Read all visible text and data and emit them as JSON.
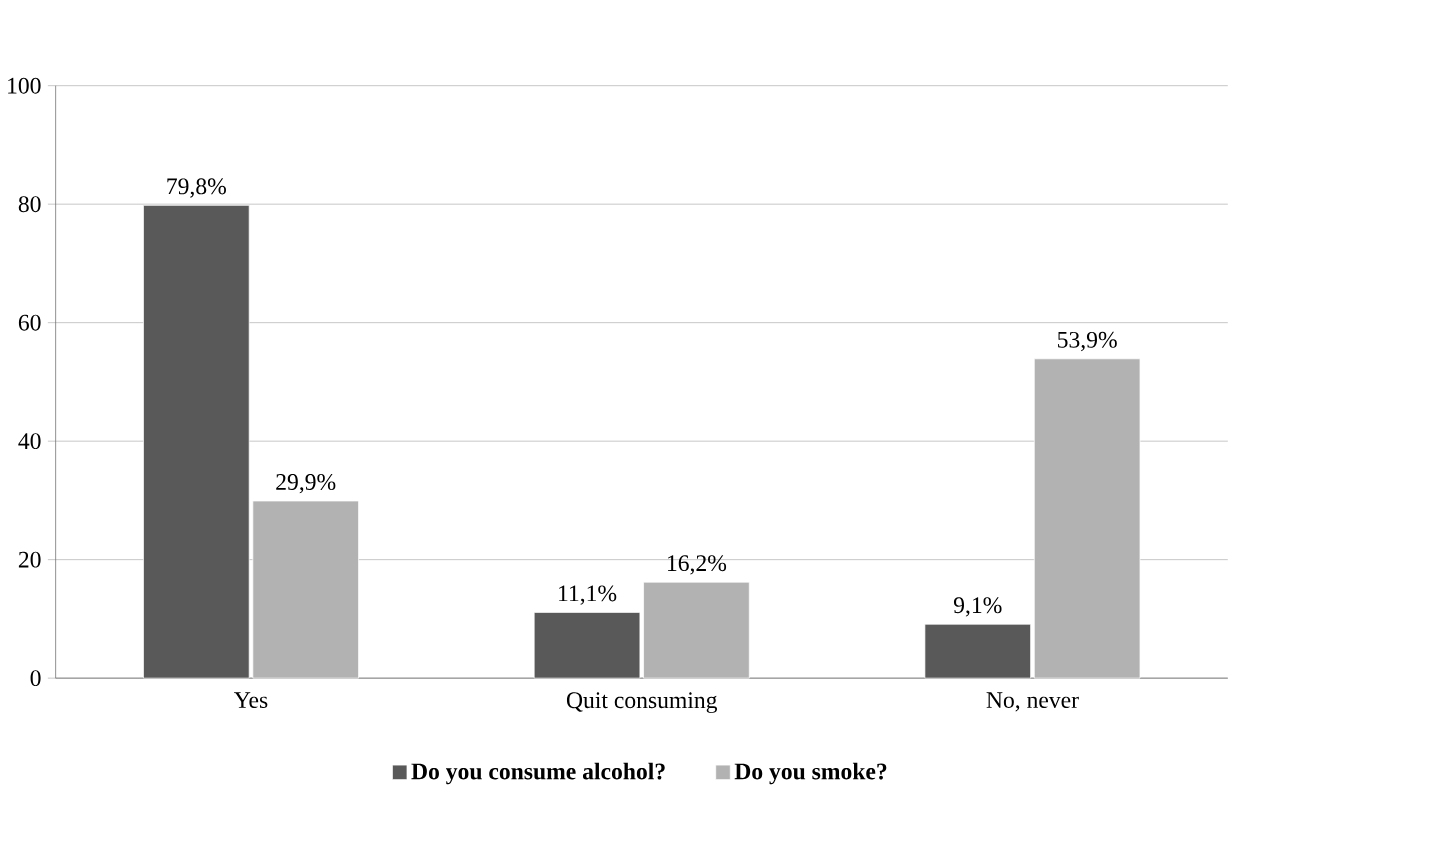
{
  "chart_data": {
    "type": "bar",
    "categories": [
      "Yes",
      "Quit consuming",
      "No, never"
    ],
    "series": [
      {
        "name": "Do you consume alcohol?",
        "color": "#595959",
        "values": [
          79.8,
          11.1,
          9.1
        ],
        "value_labels": [
          "79,8%",
          "11,1%",
          "9,1%"
        ]
      },
      {
        "name": "Do you smoke?",
        "color": "#b2b2b2",
        "values": [
          29.9,
          16.2,
          53.9
        ],
        "value_labels": [
          "29,9%",
          "16,2%",
          "53,9%"
        ]
      }
    ],
    "ylim": [
      0,
      100
    ],
    "yticks": [
      0,
      20,
      40,
      60,
      80,
      100
    ],
    "grid": "y",
    "legend": "bottom"
  }
}
